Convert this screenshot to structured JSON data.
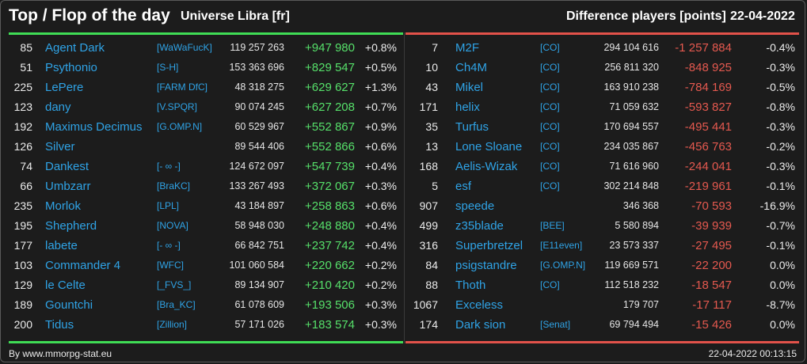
{
  "header": {
    "title": "Top / Flop of the day",
    "universe": "Universe Libra [fr]",
    "metric": "Difference players [points]",
    "date": "22-04-2022"
  },
  "top": [
    {
      "rank": "85",
      "name": "Agent Dark",
      "ally": "[WaWaFucK]",
      "points": "119 257 263",
      "diff": "+947 980",
      "pct": "+0.8%"
    },
    {
      "rank": "51",
      "name": "Psythonio",
      "ally": "[S-H]",
      "points": "153 363 696",
      "diff": "+829 547",
      "pct": "+0.5%"
    },
    {
      "rank": "225",
      "name": "LePere",
      "ally": "[FARM DfC]",
      "points": "48 318 275",
      "diff": "+629 627",
      "pct": "+1.3%"
    },
    {
      "rank": "123",
      "name": "dany",
      "ally": "[V.SPQR]",
      "points": "90 074 245",
      "diff": "+627 208",
      "pct": "+0.7%"
    },
    {
      "rank": "192",
      "name": "Maximus Decimus",
      "ally": "[G.OMP.N]",
      "points": "60 529 967",
      "diff": "+552 867",
      "pct": "+0.9%"
    },
    {
      "rank": "126",
      "name": "Silver",
      "ally": "",
      "points": "89 544 406",
      "diff": "+552 866",
      "pct": "+0.6%"
    },
    {
      "rank": "74",
      "name": "Dankest",
      "ally": "[- ∞ -]",
      "points": "124 672 097",
      "diff": "+547 739",
      "pct": "+0.4%"
    },
    {
      "rank": "66",
      "name": "Umbzarr",
      "ally": "[BraKC]",
      "points": "133 267 493",
      "diff": "+372 067",
      "pct": "+0.3%"
    },
    {
      "rank": "235",
      "name": "Morlok",
      "ally": "[LPL]",
      "points": "43 184 897",
      "diff": "+258 863",
      "pct": "+0.6%"
    },
    {
      "rank": "195",
      "name": "Shepherd",
      "ally": "[NOVA]",
      "points": "58 948 030",
      "diff": "+248 880",
      "pct": "+0.4%"
    },
    {
      "rank": "177",
      "name": "labete",
      "ally": "[- ∞ -]",
      "points": "66 842 751",
      "diff": "+237 742",
      "pct": "+0.4%"
    },
    {
      "rank": "103",
      "name": "Commander 4",
      "ally": "[WFC]",
      "points": "101 060 584",
      "diff": "+220 662",
      "pct": "+0.2%"
    },
    {
      "rank": "129",
      "name": "le Celte",
      "ally": "[_FVS_]",
      "points": "89 134 907",
      "diff": "+210 420",
      "pct": "+0.2%"
    },
    {
      "rank": "189",
      "name": "Gountchi",
      "ally": "[Bra_KC]",
      "points": "61 078 609",
      "diff": "+193 506",
      "pct": "+0.3%"
    },
    {
      "rank": "200",
      "name": "Tidus",
      "ally": "[Zillion]",
      "points": "57 171 026",
      "diff": "+183 574",
      "pct": "+0.3%"
    }
  ],
  "flop": [
    {
      "rank": "7",
      "name": "M2F",
      "ally": "[CO]",
      "points": "294 104 616",
      "diff": "-1 257 884",
      "pct": "-0.4%"
    },
    {
      "rank": "10",
      "name": "Ch4M",
      "ally": "[CO]",
      "points": "256 811 320",
      "diff": "-848 925",
      "pct": "-0.3%"
    },
    {
      "rank": "43",
      "name": "Mikel",
      "ally": "[CO]",
      "points": "163 910 238",
      "diff": "-784 169",
      "pct": "-0.5%"
    },
    {
      "rank": "171",
      "name": "helix",
      "ally": "[CO]",
      "points": "71 059 632",
      "diff": "-593 827",
      "pct": "-0.8%"
    },
    {
      "rank": "35",
      "name": "Turfus",
      "ally": "[CO]",
      "points": "170 694 557",
      "diff": "-495 441",
      "pct": "-0.3%"
    },
    {
      "rank": "13",
      "name": "Lone Sloane",
      "ally": "[CO]",
      "points": "234 035 867",
      "diff": "-456 763",
      "pct": "-0.2%"
    },
    {
      "rank": "168",
      "name": "Aelis-Wizak",
      "ally": "[CO]",
      "points": "71 616 960",
      "diff": "-244 041",
      "pct": "-0.3%"
    },
    {
      "rank": "5",
      "name": "esf",
      "ally": "[CO]",
      "points": "302 214 848",
      "diff": "-219 961",
      "pct": "-0.1%"
    },
    {
      "rank": "907",
      "name": "speede",
      "ally": "",
      "points": "346 368",
      "diff": "-70 593",
      "pct": "-16.9%"
    },
    {
      "rank": "499",
      "name": "z35blade",
      "ally": "[BEE]",
      "points": "5 580 894",
      "diff": "-39 939",
      "pct": "-0.7%"
    },
    {
      "rank": "316",
      "name": "Superbretzel",
      "ally": "[E11even]",
      "points": "23 573 337",
      "diff": "-27 495",
      "pct": "-0.1%"
    },
    {
      "rank": "84",
      "name": "psigstandre",
      "ally": "[G.OMP.N]",
      "points": "119 669 571",
      "diff": "-22 200",
      "pct": "0.0%"
    },
    {
      "rank": "88",
      "name": "Thoth",
      "ally": "[CO]",
      "points": "112 518 232",
      "diff": "-18 547",
      "pct": "0.0%"
    },
    {
      "rank": "1067",
      "name": "Exceless",
      "ally": "",
      "points": "179 707",
      "diff": "-17 117",
      "pct": "-8.7%"
    },
    {
      "rank": "174",
      "name": "Dark sion",
      "ally": "[Senat]",
      "points": "69 794 494",
      "diff": "-15 426",
      "pct": "0.0%"
    }
  ],
  "footer": {
    "credit": "By www.mmorpg-stat.eu",
    "timestamp": "22-04-2022 00:13:15"
  },
  "colors": {
    "accent_up": "#56e06a",
    "accent_down": "#e5594f",
    "link": "#2fa3e6"
  }
}
